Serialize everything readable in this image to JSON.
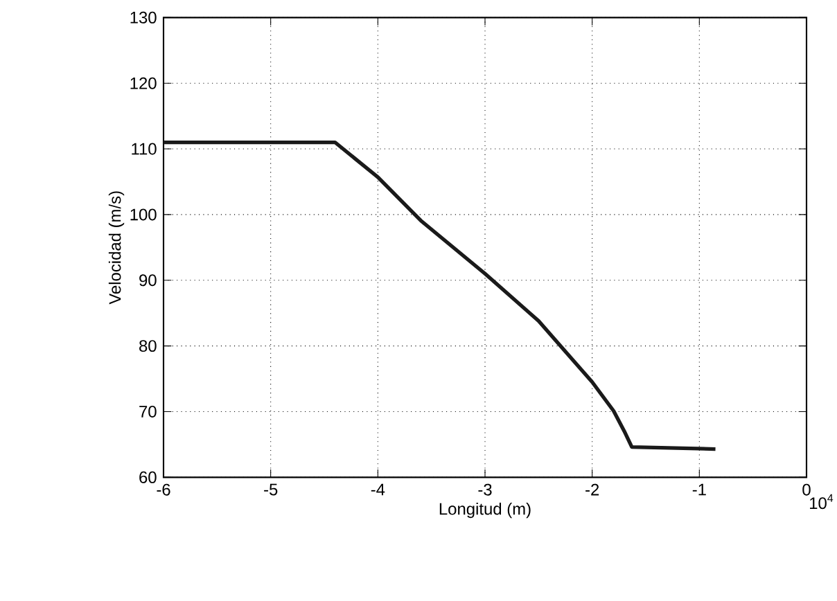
{
  "chart_data": {
    "type": "line",
    "xlabel": "Longitud (m)",
    "ylabel": "Velocidad (m/s)",
    "annotations": [
      "10$^{4}$"
    ],
    "x": [
      -6,
      -4.4,
      -4,
      -3.6,
      -3,
      -2.5,
      -2,
      -1.8,
      -1.7,
      -1.63,
      -0.85
    ],
    "series": [
      {
        "color": "#1a1a1a",
        "values": [
          111,
          111,
          105.7,
          99.1,
          91,
          83.8,
          74.5,
          70.1,
          67,
          64.6,
          64.3
        ]
      }
    ],
    "xlim": [
      -6,
      0
    ],
    "xticks": [
      -6,
      -5,
      -4,
      -3,
      -2,
      -1,
      0
    ],
    "ylim": [
      60,
      130
    ],
    "yticks": [
      60,
      70,
      80,
      90,
      100,
      110,
      120,
      130
    ],
    "grid": true,
    "marker": "none",
    "line_style": "solid"
  }
}
